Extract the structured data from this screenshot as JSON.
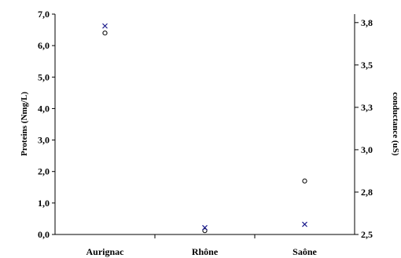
{
  "chart_data": {
    "type": "scatter",
    "title": "",
    "categories": [
      "Aurignac",
      "Rhône",
      "Saône"
    ],
    "left_axis": {
      "label": "Proteins (Nmg/L)",
      "ylim": [
        0,
        7
      ],
      "ticks": [
        "0,0",
        "1,0",
        "2,0",
        "3,0",
        "4,0",
        "5,0",
        "6,0",
        "7,0"
      ],
      "tick_values": [
        0,
        1,
        2,
        3,
        4,
        5,
        6,
        7
      ]
    },
    "right_axis": {
      "label": "conductance (uS)",
      "ylim": [
        2.5,
        3.8
      ],
      "ticks": [
        "2,5",
        "2,8",
        "3,0",
        "3,3",
        "3,5",
        "3,8"
      ],
      "tick_values": [
        2.5,
        2.75,
        3.0,
        3.25,
        3.5,
        3.75
      ]
    },
    "series": [
      {
        "marker": "circle",
        "axis": "left",
        "color": "#000000",
        "values": [
          6.4,
          0.12,
          1.7
        ]
      },
      {
        "marker": "x",
        "axis": "right",
        "color": "#1a1a8c",
        "values": [
          3.73,
          2.54,
          2.56
        ]
      }
    ],
    "grid": false,
    "legend": "none"
  }
}
